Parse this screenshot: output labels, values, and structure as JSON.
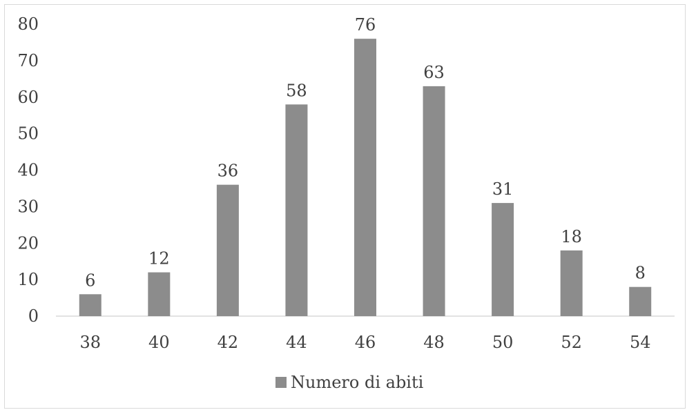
{
  "chart_data": {
    "type": "bar",
    "categories": [
      "38",
      "40",
      "42",
      "44",
      "46",
      "48",
      "50",
      "52",
      "54"
    ],
    "series": [
      {
        "name": "Numero di abiti",
        "values": [
          6,
          12,
          36,
          58,
          76,
          63,
          31,
          18,
          8
        ]
      }
    ],
    "ylim": [
      0,
      80
    ],
    "yticks": [
      0,
      10,
      20,
      30,
      40,
      50,
      60,
      70,
      80
    ],
    "grid": false,
    "legend_position": "bottom",
    "data_labels": true,
    "colors": {
      "bar": "#8c8c8c",
      "text": "#404040",
      "axis": "#d9d9d9",
      "frame": "#d9d9d9"
    }
  }
}
